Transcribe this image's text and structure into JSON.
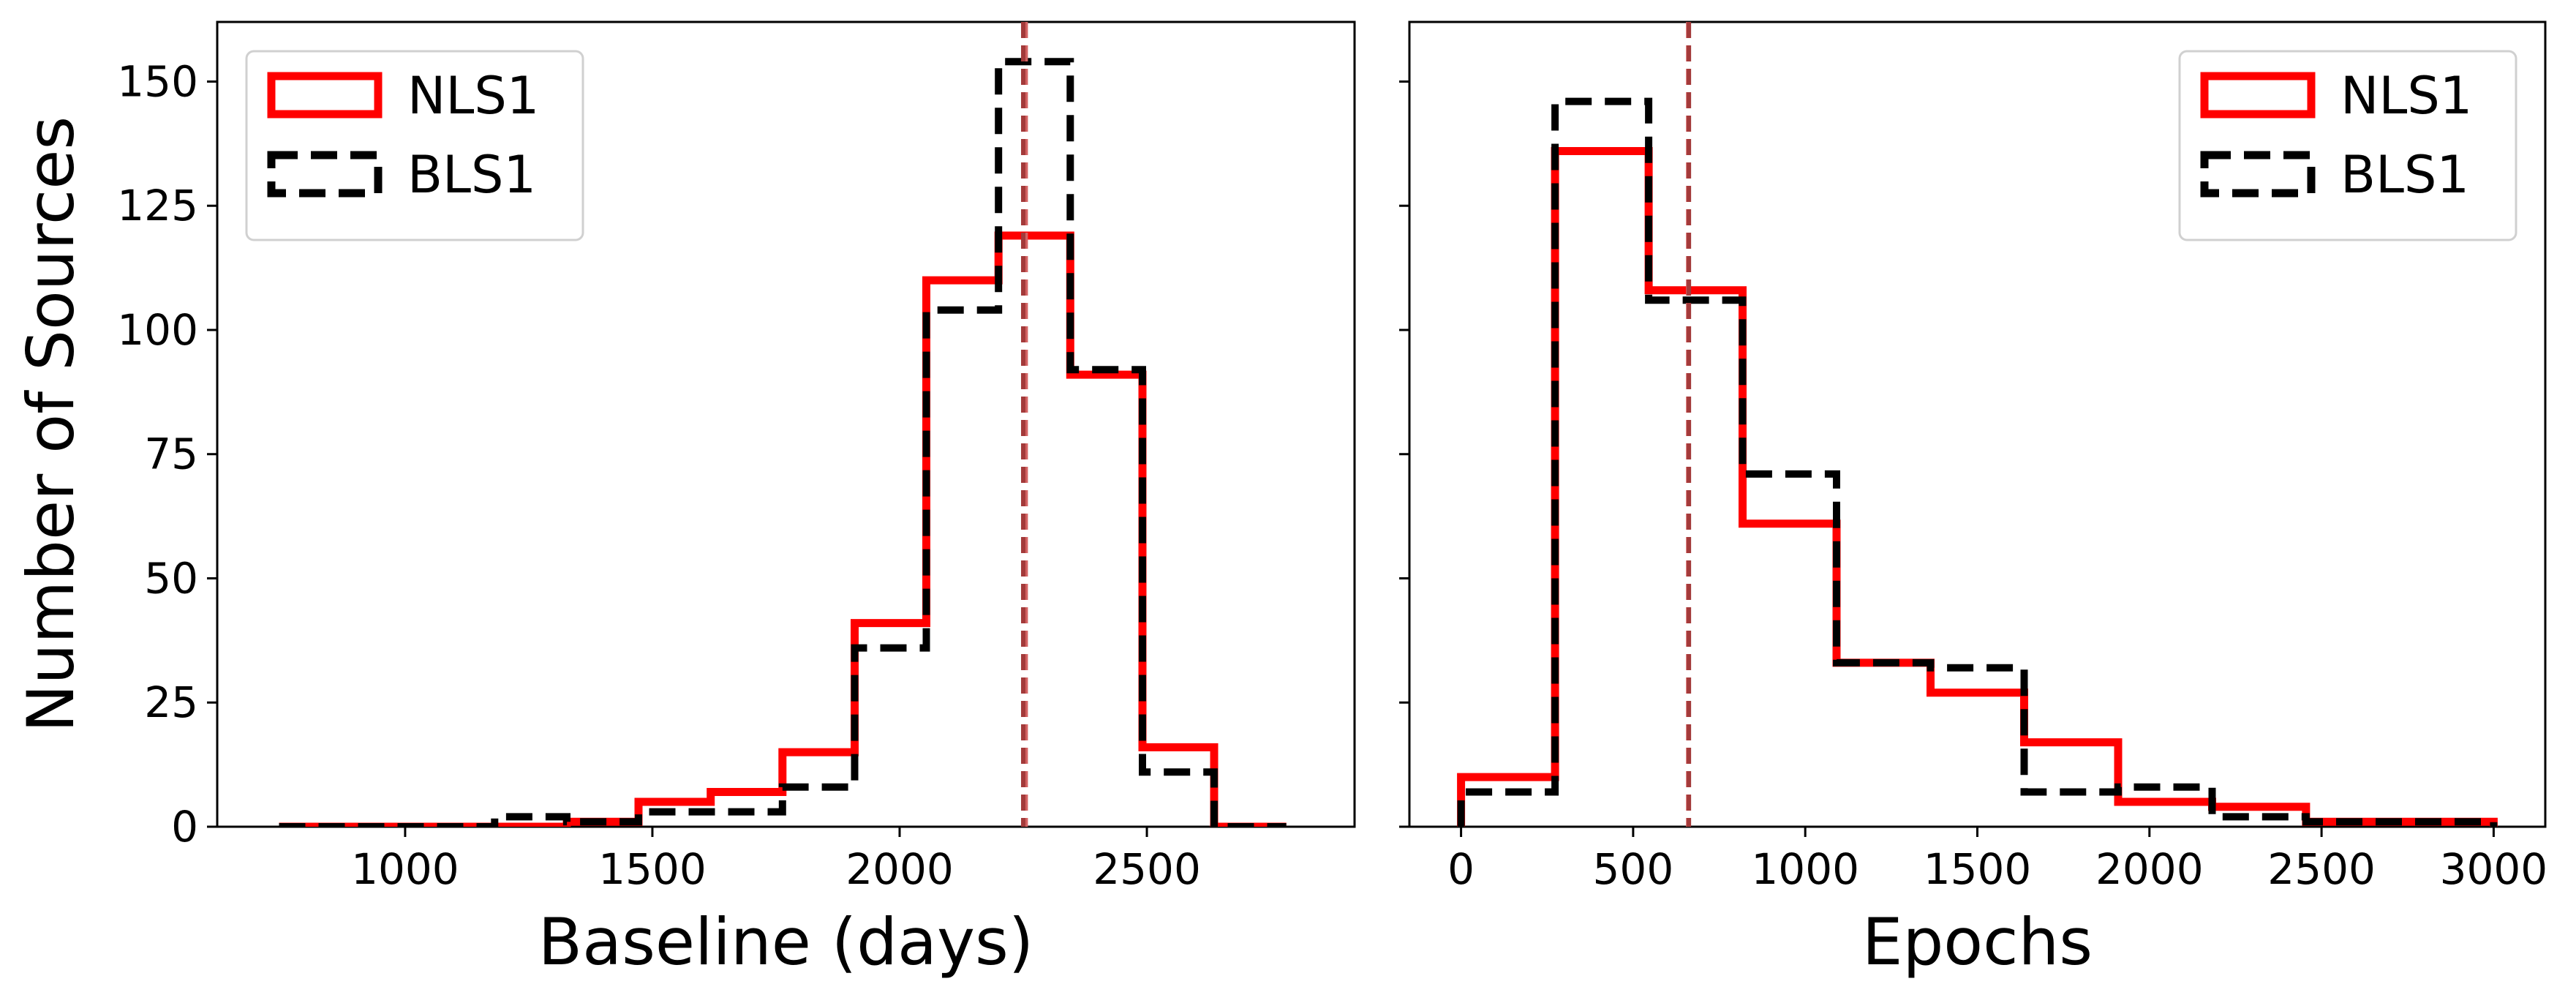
{
  "figure": {
    "ylabel": "Number of Sources"
  },
  "colors": {
    "nls1": "#ff0000",
    "bls1": "#000000",
    "median_nls1": "#d36363",
    "median_bls1": "#a33a3a"
  },
  "chart_data": [
    {
      "type": "histogram",
      "xlabel": "Baseline (days)",
      "ylabel": "Number of Sources",
      "xlim": [
        620,
        2920
      ],
      "ylim": [
        0,
        162
      ],
      "xticks": [
        1000,
        1500,
        2000,
        2500
      ],
      "xtick_labels": [
        "1000",
        "1500",
        "2000",
        "2500"
      ],
      "yticks": [
        0,
        25,
        50,
        75,
        100,
        125,
        150
      ],
      "ytick_labels": [
        "0",
        "25",
        "50",
        "75",
        "100",
        "125",
        "150"
      ],
      "bin_edges": [
        745,
        890,
        1036,
        1181,
        1327,
        1472,
        1618,
        1763,
        1909,
        2054,
        2200,
        2345,
        2491,
        2636,
        2782
      ],
      "legend_position": "top-left",
      "series": [
        {
          "name": "NLS1",
          "style": "solid",
          "values": [
            0,
            0,
            0,
            0,
            1,
            5,
            7,
            15,
            41,
            110,
            119,
            91,
            16,
            0
          ]
        },
        {
          "name": "BLS1",
          "style": "dashed",
          "values": [
            0,
            0,
            0,
            2,
            1,
            3,
            3,
            8,
            36,
            104,
            154,
            92,
            11,
            0
          ]
        }
      ],
      "medians": [
        {
          "series": "NLS1",
          "x": 2255
        },
        {
          "series": "BLS1",
          "x": 2250
        }
      ]
    },
    {
      "type": "histogram",
      "xlabel": "Epochs",
      "ylabel": "",
      "xlim": [
        -150,
        3150
      ],
      "ylim": [
        0,
        162
      ],
      "xticks": [
        0,
        500,
        1000,
        1500,
        2000,
        2500,
        3000
      ],
      "xtick_labels": [
        "0",
        "500",
        "1000",
        "1500",
        "2000",
        "2500",
        "3000"
      ],
      "yticks": [
        0,
        25,
        50,
        75,
        100,
        125,
        150
      ],
      "ytick_labels": [],
      "bin_edges": [
        0,
        273,
        545,
        818,
        1091,
        1364,
        1636,
        1909,
        2182,
        2455,
        2727,
        3000
      ],
      "legend_position": "top-right",
      "series": [
        {
          "name": "NLS1",
          "style": "solid",
          "values": [
            10,
            136,
            108,
            61,
            33,
            27,
            17,
            5,
            4,
            1,
            1
          ]
        },
        {
          "name": "BLS1",
          "style": "dashed",
          "values": [
            7,
            146,
            106,
            71,
            33,
            32,
            7,
            8,
            2,
            1,
            1
          ]
        }
      ],
      "medians": [
        {
          "series": "NLS1",
          "x": 660
        },
        {
          "series": "BLS1",
          "x": 662
        }
      ]
    }
  ]
}
